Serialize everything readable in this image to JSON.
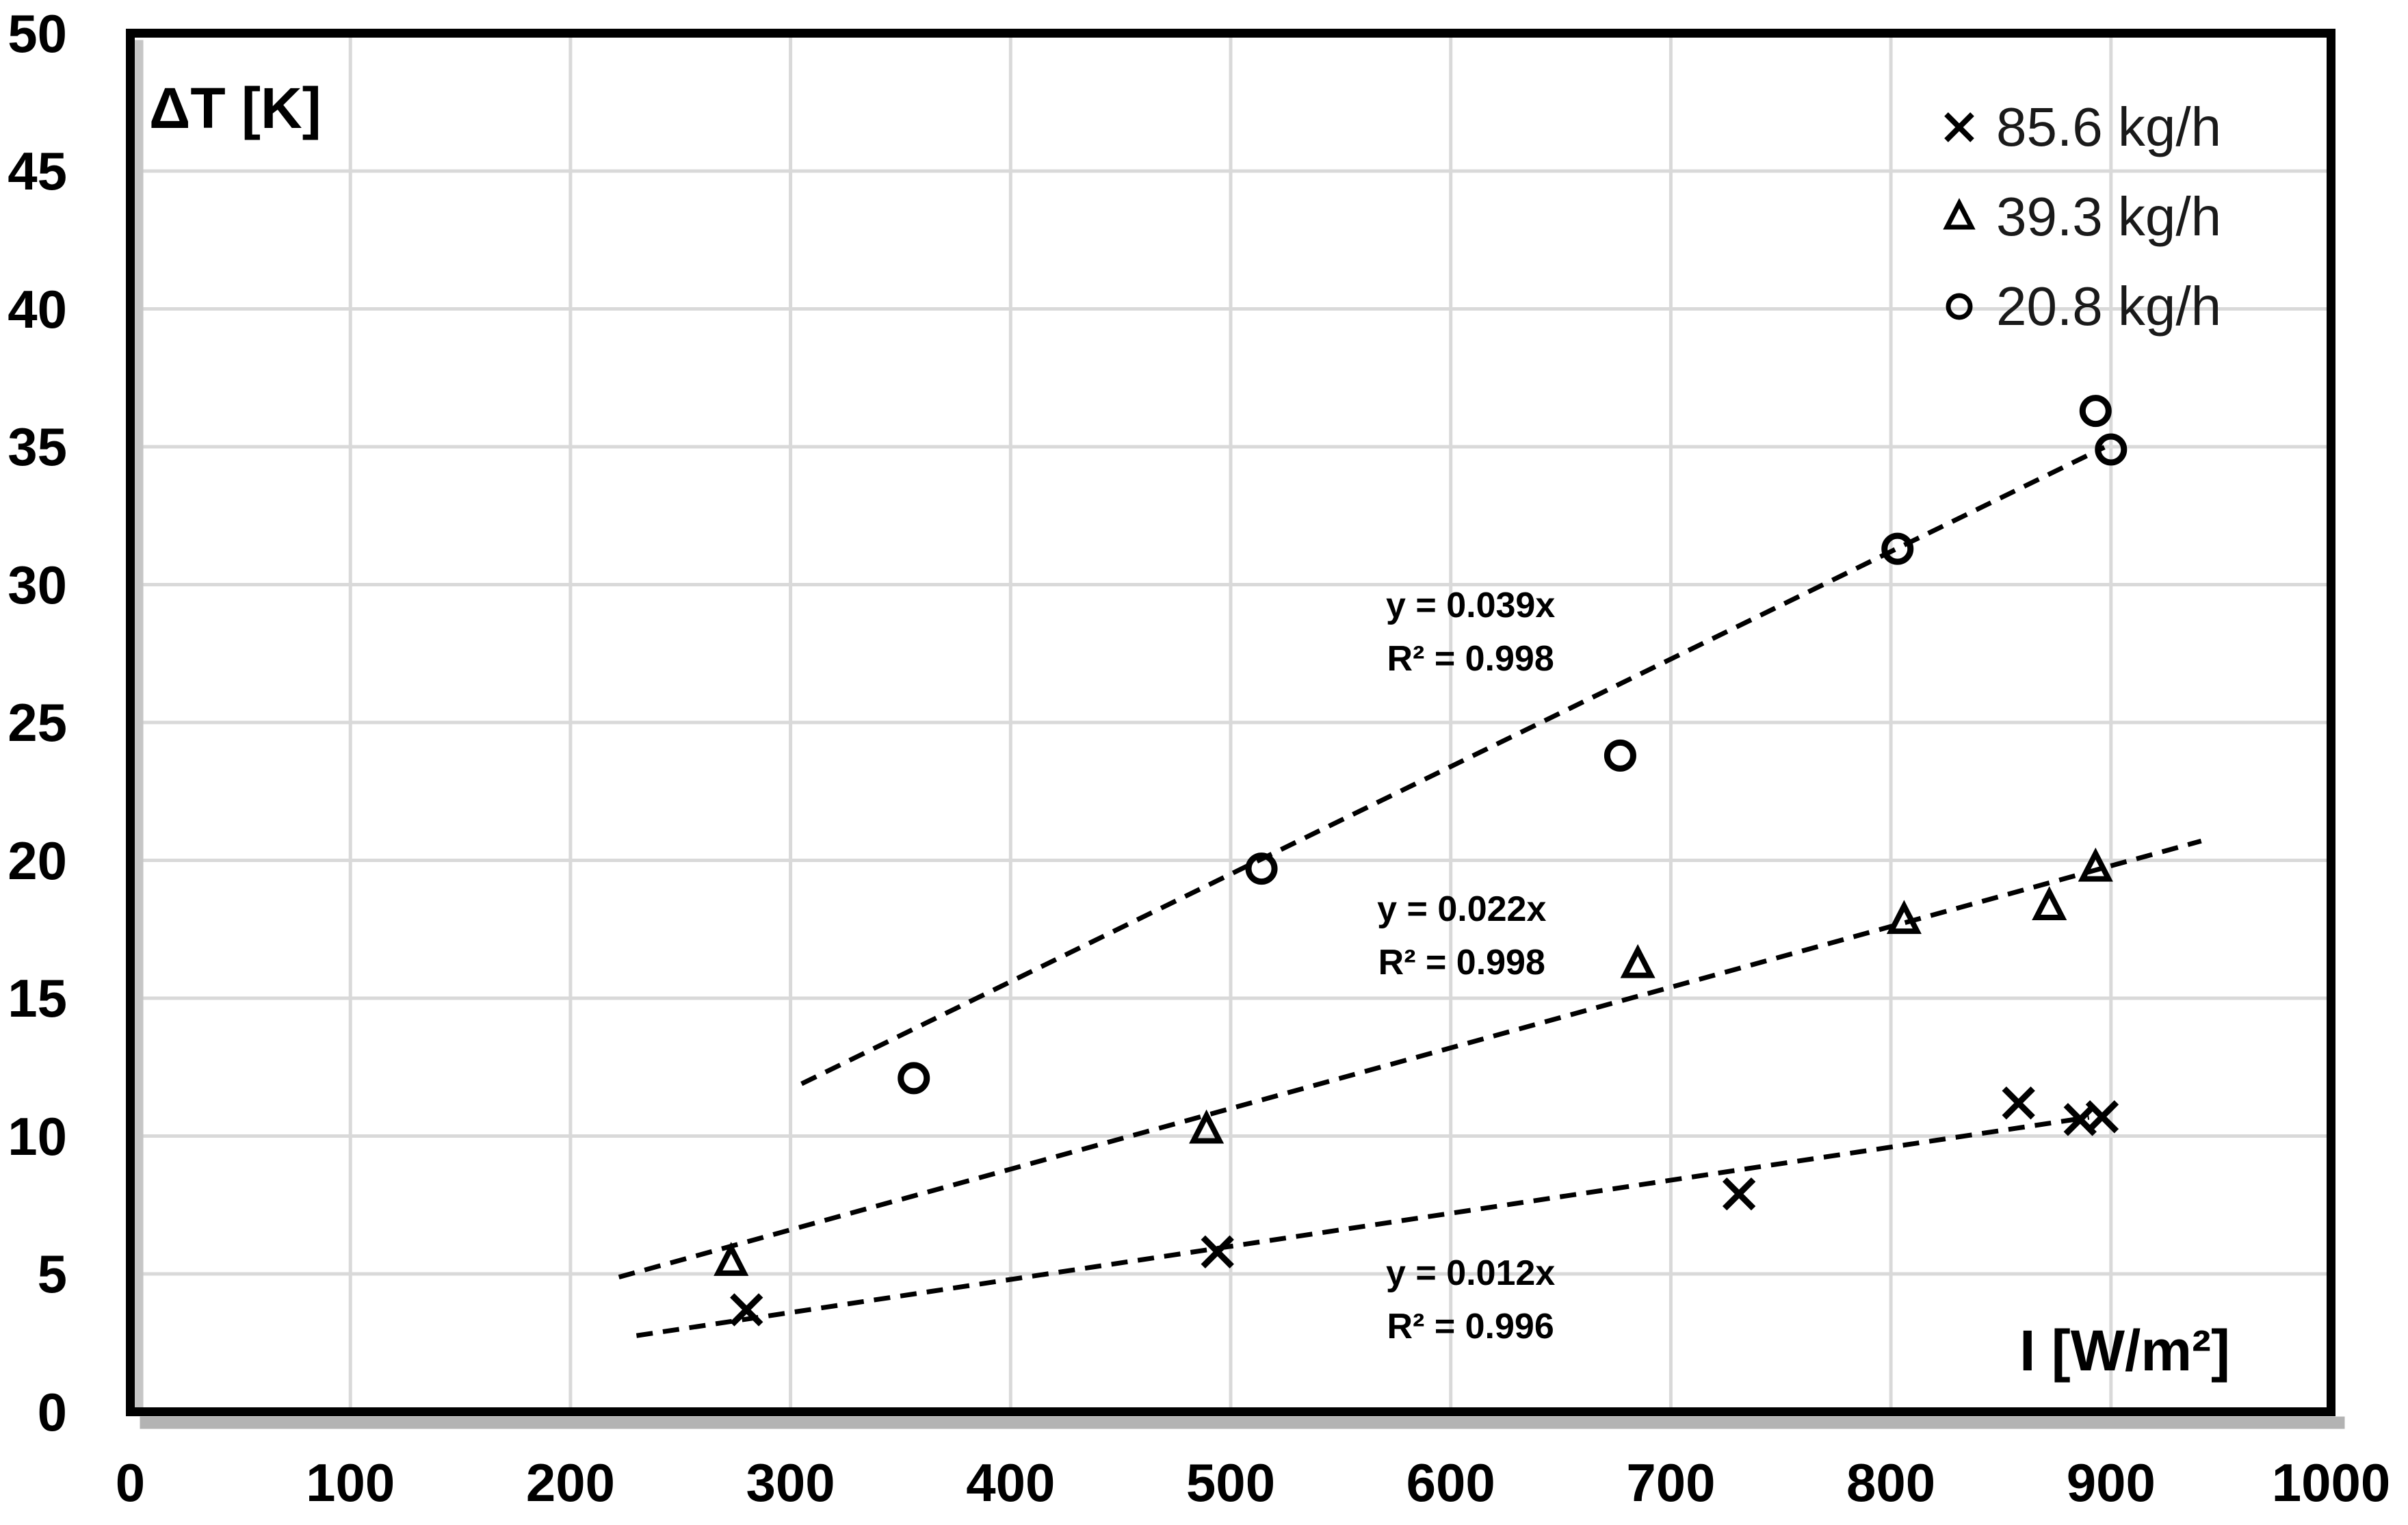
{
  "chart_data": {
    "type": "scatter",
    "title": "",
    "xlabel": "I [W/m²]",
    "ylabel": "ΔT [K]",
    "xlim": [
      0,
      1000
    ],
    "ylim": [
      0,
      50
    ],
    "x_ticks": [
      0,
      100,
      200,
      300,
      400,
      500,
      600,
      700,
      800,
      900,
      1000
    ],
    "y_ticks": [
      0,
      5,
      10,
      15,
      20,
      25,
      30,
      35,
      40,
      45,
      50
    ],
    "grid": true,
    "legend_position": "top-right-inside",
    "series": [
      {
        "name": "85.6 kg/h",
        "marker": "x",
        "points": [
          [
            280,
            3.7
          ],
          [
            494,
            5.8
          ],
          [
            731,
            7.9
          ],
          [
            858,
            11.2
          ],
          [
            886,
            10.6
          ],
          [
            896,
            10.7
          ]
        ],
        "trendline": {
          "slope": 0.012,
          "equation": "y = 0.012x",
          "r2": "R² = 0.996",
          "x_range": [
            230,
            890
          ],
          "label_pos": {
            "x": 609,
            "y": 6.0
          }
        }
      },
      {
        "name": "39.3 kg/h",
        "marker": "triangle",
        "points": [
          [
            273,
            5.4
          ],
          [
            489,
            10.2
          ],
          [
            685,
            16.2
          ],
          [
            806,
            17.8
          ],
          [
            872,
            18.3
          ],
          [
            893,
            19.7
          ]
        ],
        "trendline": {
          "slope": 0.022,
          "equation": "y = 0.022x",
          "r2": "R² = 0.998",
          "x_range": [
            222,
            941
          ],
          "label_pos": {
            "x": 605,
            "y": 19.2
          }
        }
      },
      {
        "name": "20.8 kg/h",
        "marker": "circle",
        "points": [
          [
            356,
            12.1
          ],
          [
            514,
            19.7
          ],
          [
            677,
            23.8
          ],
          [
            803,
            31.3
          ],
          [
            893,
            36.3
          ],
          [
            900,
            34.9
          ]
        ],
        "trendline": {
          "slope": 0.039,
          "equation": "y = 0.039x",
          "r2": "R² = 0.998",
          "x_range": [
            305,
            897
          ],
          "label_pos": {
            "x": 609,
            "y": 30.2
          }
        }
      }
    ],
    "colors": {
      "marker": "#000000",
      "trendline": "#000000",
      "gridline": "#d9d9d9",
      "plot_border": "#000000",
      "shadow": "#b3b3b3",
      "background": "#ffffff",
      "text": "#000000"
    }
  }
}
